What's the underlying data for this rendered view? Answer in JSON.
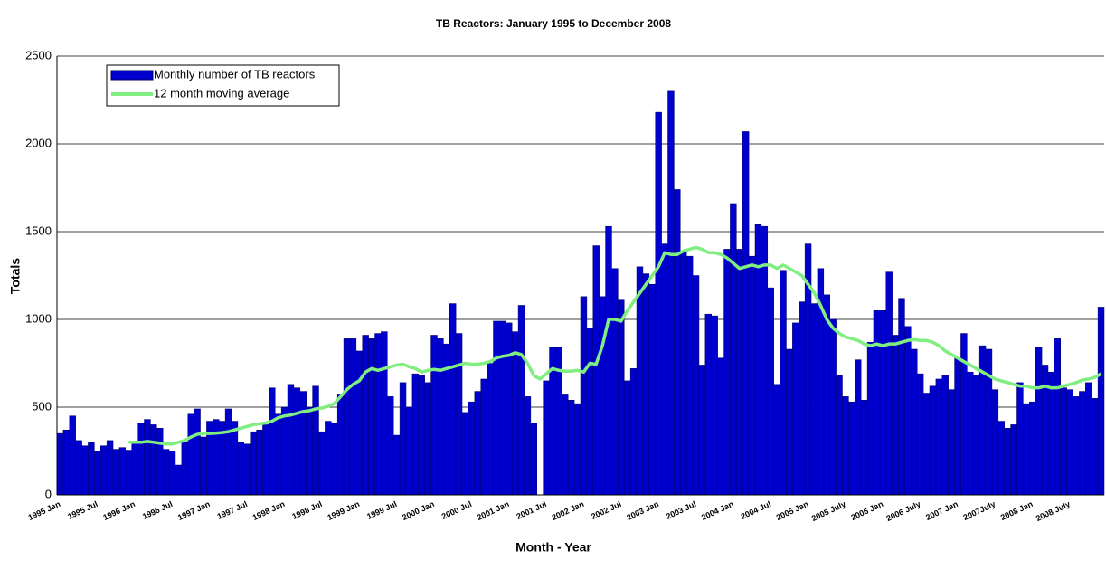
{
  "chart_data": {
    "type": "bar",
    "title": "TB Reactors: January 1995 to December 2008",
    "x_label": "Month - Year",
    "y_label": "Totals",
    "categories": [
      "1995 Jan",
      null,
      null,
      null,
      null,
      null,
      "1995 Jul",
      null,
      null,
      null,
      null,
      null,
      "1996 Jan",
      null,
      null,
      null,
      null,
      null,
      "1996 Jul",
      null,
      null,
      null,
      null,
      null,
      "1997 Jan",
      null,
      null,
      null,
      null,
      null,
      "1997 Jul",
      null,
      null,
      null,
      null,
      null,
      "1998 Jan",
      null,
      null,
      null,
      null,
      null,
      "1998 Jul",
      null,
      null,
      null,
      null,
      null,
      "1999 Jan",
      null,
      null,
      null,
      null,
      null,
      "1999 Jul",
      null,
      null,
      null,
      null,
      null,
      "2000 Jan",
      null,
      null,
      null,
      null,
      null,
      "2000 Jul",
      null,
      null,
      null,
      null,
      null,
      "2001 Jan",
      null,
      null,
      null,
      null,
      null,
      "2001 Jul",
      null,
      null,
      null,
      null,
      null,
      "2002 Jan",
      null,
      null,
      null,
      null,
      null,
      "2002 Jul",
      null,
      null,
      null,
      null,
      null,
      "2003 Jan",
      null,
      null,
      null,
      null,
      null,
      "2003 Jul",
      null,
      null,
      null,
      null,
      null,
      "2004 Jan",
      null,
      null,
      null,
      null,
      null,
      "2004 Jul",
      null,
      null,
      null,
      null,
      null,
      "2005 Jan",
      null,
      null,
      null,
      null,
      null,
      "2005 July",
      null,
      null,
      null,
      null,
      null,
      "2006 Jan",
      null,
      null,
      null,
      null,
      null,
      "2006 July",
      null,
      null,
      null,
      null,
      null,
      "2007 Jan",
      null,
      null,
      null,
      null,
      null,
      "2007July",
      null,
      null,
      null,
      null,
      null,
      "2008 Jan",
      null,
      null,
      null,
      null,
      null,
      "2008  July",
      null,
      null,
      null,
      null,
      null
    ],
    "series": [
      {
        "name": "Monthly number of TB reactors",
        "type": "bar",
        "color": "#0000cc",
        "values": [
          350,
          370,
          450,
          310,
          280,
          300,
          250,
          280,
          310,
          260,
          270,
          255,
          300,
          410,
          430,
          400,
          380,
          260,
          250,
          170,
          300,
          460,
          490,
          330,
          420,
          430,
          420,
          490,
          420,
          300,
          290,
          360,
          370,
          400,
          610,
          460,
          500,
          630,
          610,
          590,
          500,
          620,
          360,
          420,
          410,
          570,
          890,
          890,
          820,
          910,
          890,
          920,
          930,
          560,
          340,
          640,
          500,
          690,
          680,
          640,
          910,
          890,
          860,
          1090,
          920,
          470,
          530,
          590,
          660,
          750,
          990,
          990,
          980,
          930,
          1080,
          560,
          410,
          0,
          650,
          840,
          840,
          570,
          540,
          520,
          1130,
          950,
          1420,
          1130,
          1530,
          1290,
          1110,
          650,
          720,
          1300,
          1260,
          1200,
          2180,
          1430,
          2300,
          1740,
          1390,
          1360,
          1250,
          740,
          1030,
          1020,
          780,
          1400,
          1660,
          1400,
          2070,
          1360,
          1540,
          1530,
          1180,
          630,
          1280,
          830,
          980,
          1100,
          1430,
          1090,
          1290,
          1140,
          1000,
          680,
          560,
          530,
          770,
          540,
          870,
          1050,
          1050,
          1270,
          910,
          1120,
          960,
          830,
          690,
          580,
          620,
          660,
          680,
          600,
          780,
          920,
          700,
          680,
          850,
          830,
          600,
          420,
          380,
          400,
          640,
          520,
          530,
          840,
          740,
          700,
          890,
          610,
          600,
          560,
          590,
          640,
          550,
          1070
        ]
      },
      {
        "name": "12 month moving average",
        "type": "line",
        "color": "#80ee80",
        "values": [
          null,
          null,
          null,
          null,
          null,
          null,
          null,
          null,
          null,
          null,
          null,
          300,
          300,
          300,
          305,
          300,
          295,
          290,
          290,
          300,
          310,
          330,
          345,
          350,
          350,
          352,
          355,
          360,
          370,
          380,
          390,
          400,
          405,
          410,
          420,
          440,
          450,
          455,
          465,
          475,
          480,
          490,
          495,
          505,
          520,
          560,
          600,
          630,
          650,
          700,
          720,
          710,
          720,
          730,
          740,
          745,
          730,
          720,
          700,
          710,
          715,
          710,
          720,
          730,
          740,
          750,
          745,
          745,
          750,
          760,
          780,
          790,
          795,
          810,
          800,
          750,
          680,
          660,
          690,
          720,
          710,
          705,
          705,
          710,
          700,
          750,
          745,
          850,
          1000,
          1000,
          990,
          1050,
          1100,
          1150,
          1200,
          1250,
          1300,
          1380,
          1370,
          1370,
          1390,
          1400,
          1410,
          1400,
          1380,
          1380,
          1370,
          1350,
          1320,
          1290,
          1300,
          1310,
          1300,
          1310,
          1310,
          1290,
          1310,
          1290,
          1270,
          1250,
          1200,
          1150,
          1080,
          1000,
          950,
          920,
          900,
          890,
          880,
          860,
          850,
          860,
          850,
          860,
          860,
          870,
          880,
          885,
          880,
          880,
          870,
          850,
          820,
          800,
          780,
          760,
          740,
          720,
          700,
          680,
          660,
          650,
          640,
          630,
          620,
          620,
          610,
          610,
          620,
          610,
          610,
          620,
          630,
          640,
          655,
          660,
          670,
          690
        ]
      }
    ],
    "ylim": [
      0,
      2500
    ],
    "yticks": [
      0,
      500,
      1000,
      1500,
      2000,
      2500
    ],
    "grid": true,
    "legend": "upper-left"
  }
}
